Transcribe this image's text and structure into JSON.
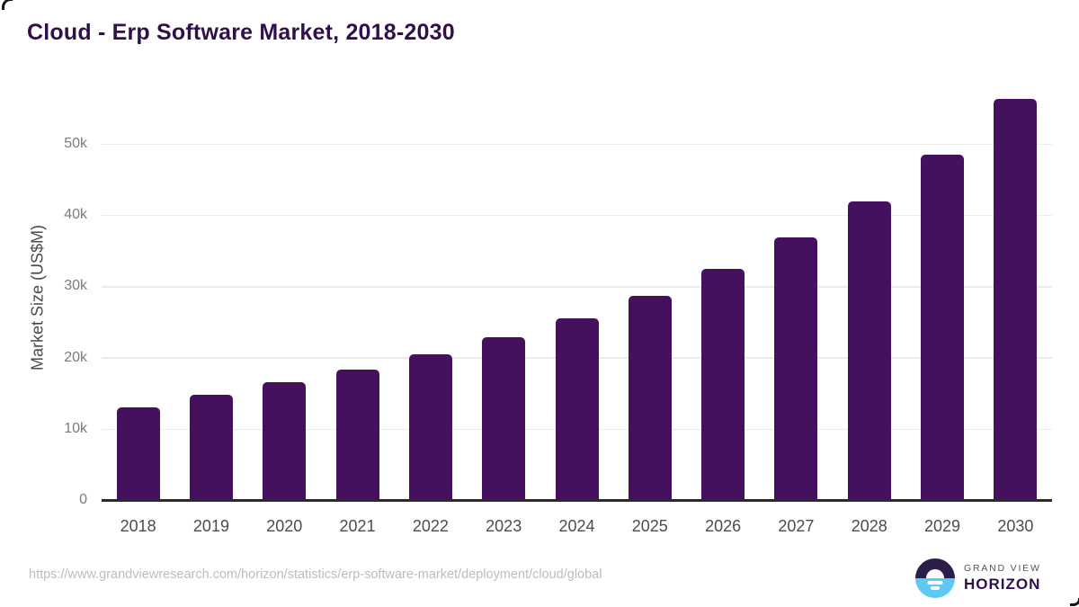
{
  "page": {
    "title": "Cloud - Erp Software Market, 2018-2030"
  },
  "chart_data": {
    "type": "bar",
    "title": "Cloud - Erp Software Market, 2018-2030",
    "ylabel": "Market Size (US$M)",
    "xlabel": "",
    "categories": [
      "2018",
      "2019",
      "2020",
      "2021",
      "2022",
      "2023",
      "2024",
      "2025",
      "2026",
      "2027",
      "2028",
      "2029",
      "2030"
    ],
    "values": [
      13100,
      14800,
      16600,
      18400,
      20500,
      22900,
      25600,
      28700,
      32500,
      36900,
      42000,
      48500,
      56400
    ],
    "ylim": [
      0,
      57500
    ],
    "yticks": [
      0,
      10000,
      20000,
      30000,
      40000,
      50000
    ],
    "ytick_labels": [
      "0",
      "10k",
      "20k",
      "30k",
      "40k",
      "50k"
    ],
    "grid": true,
    "legend": false,
    "bar_color": "#45105e"
  },
  "footer": {
    "source_url": "https://www.grandviewresearch.com/horizon/statistics/erp-software-market/deployment/cloud/global",
    "logo": {
      "icon": "sunrise-horizon-icon",
      "line1": "GRAND VIEW",
      "line2": "HORIZON"
    }
  },
  "colors": {
    "bar": "#45105e",
    "title": "#311049",
    "axis_line": "#2b2b2b",
    "gridline": "#ebebee",
    "x_tick_label": "#4c4c4c",
    "y_tick_label": "#7b7b80",
    "y_axis_title": "#4a4a4a",
    "source_text": "#bdbdbd",
    "logo_navy": "#2c1d49",
    "logo_blue": "#5ec9f2",
    "logo_grand_view_text": "#54555d",
    "logo_horizon_text": "#2e0f4c"
  }
}
